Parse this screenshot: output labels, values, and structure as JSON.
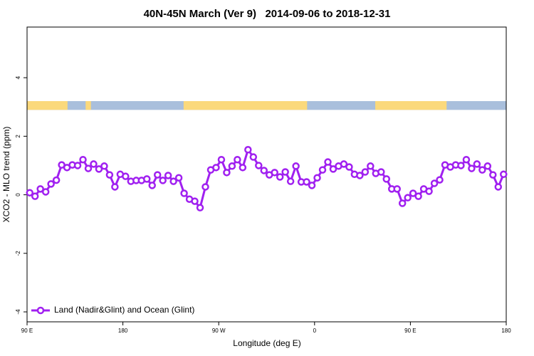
{
  "chart_data": {
    "type": "line",
    "title": "40N-45N March (Ver 9)   2014-09-06 to 2018-12-31",
    "x_label": "Longitude (deg E)",
    "y_label": "XCO2 - MLO trend (ppm)",
    "xlim": [
      90,
      540
    ],
    "ylim": [
      -4.34,
      5.73
    ],
    "xticks": [
      {
        "value": 90,
        "label": "90 E"
      },
      180,
      {
        "value": 270,
        "label": "90 W"
      },
      {
        "value": 360,
        "label": "0"
      },
      {
        "value": 450,
        "label": "90 E"
      },
      {
        "value": 540,
        "label": "180"
      }
    ],
    "yticks": [
      -4,
      -2,
      0,
      2,
      4
    ],
    "legend": "lower left",
    "surface_strip": {
      "ylim": [
        2.9,
        3.2
      ],
      "land_color": "#fbd97c",
      "ocean_color": "#a9bfdc",
      "land": [
        [
          90,
          128
        ],
        [
          145,
          150
        ],
        [
          237,
          353
        ],
        [
          417,
          484
        ]
      ]
    },
    "series": [
      {
        "name": "Land (Nadir&Glint) and Ocean (Glint)",
        "color": "#a020f0",
        "x": [
          92.5,
          97.5,
          102.5,
          107.5,
          112.5,
          117.5,
          122.5,
          127.5,
          132.5,
          137.5,
          142.5,
          147.5,
          152.5,
          157.5,
          162.5,
          167.5,
          172.5,
          177.5,
          182.5,
          187.5,
          192.5,
          197.5,
          202.5,
          207.5,
          212.5,
          217.5,
          222.5,
          227.5,
          232.5,
          237.5,
          242.5,
          247.5,
          252.5,
          257.5,
          262.5,
          267.5,
          272.5,
          277.5,
          282.5,
          287.5,
          292.5,
          297.5,
          302.5,
          307.5,
          312.5,
          317.5,
          322.5,
          327.5,
          332.5,
          337.5,
          342.5,
          347.5,
          352.5,
          357.5,
          362.5,
          367.5,
          372.5,
          377.5,
          382.5,
          387.5,
          392.5,
          397.5,
          402.5,
          407.5,
          412.5,
          417.5,
          422.5,
          427.5,
          432.5,
          437.5,
          442.5,
          447.5,
          452.5,
          457.5,
          462.5,
          467.5,
          472.5,
          477.5,
          482.5,
          487.5,
          492.5,
          497.5,
          502.5,
          507.5,
          512.5,
          517.5,
          522.5,
          527.5,
          532.5,
          537.5
        ],
        "values": [
          0.07,
          -0.05,
          0.2,
          0.1,
          0.37,
          0.5,
          1.02,
          0.93,
          1.02,
          1.0,
          1.2,
          0.9,
          1.05,
          0.88,
          0.98,
          0.68,
          0.27,
          0.7,
          0.63,
          0.46,
          0.49,
          0.49,
          0.54,
          0.32,
          0.68,
          0.49,
          0.66,
          0.46,
          0.58,
          0.05,
          -0.15,
          -0.22,
          -0.44,
          0.27,
          0.85,
          0.93,
          1.2,
          0.76,
          0.98,
          1.2,
          0.93,
          1.54,
          1.29,
          1.0,
          0.83,
          0.68,
          0.76,
          0.61,
          0.78,
          0.46,
          0.98,
          0.44,
          0.44,
          0.32,
          0.58,
          0.85,
          1.12,
          0.88,
          0.98,
          1.05,
          0.95,
          0.7,
          0.66,
          0.78,
          0.98,
          0.73,
          0.78,
          0.54,
          0.2,
          0.2,
          -0.29,
          -0.1,
          0.05,
          -0.05,
          0.2,
          0.12,
          0.39,
          0.51,
          1.02,
          0.95,
          1.02,
          1.0,
          1.2,
          0.9,
          1.05,
          0.85,
          0.98,
          0.68,
          0.27,
          0.7
        ]
      }
    ]
  }
}
